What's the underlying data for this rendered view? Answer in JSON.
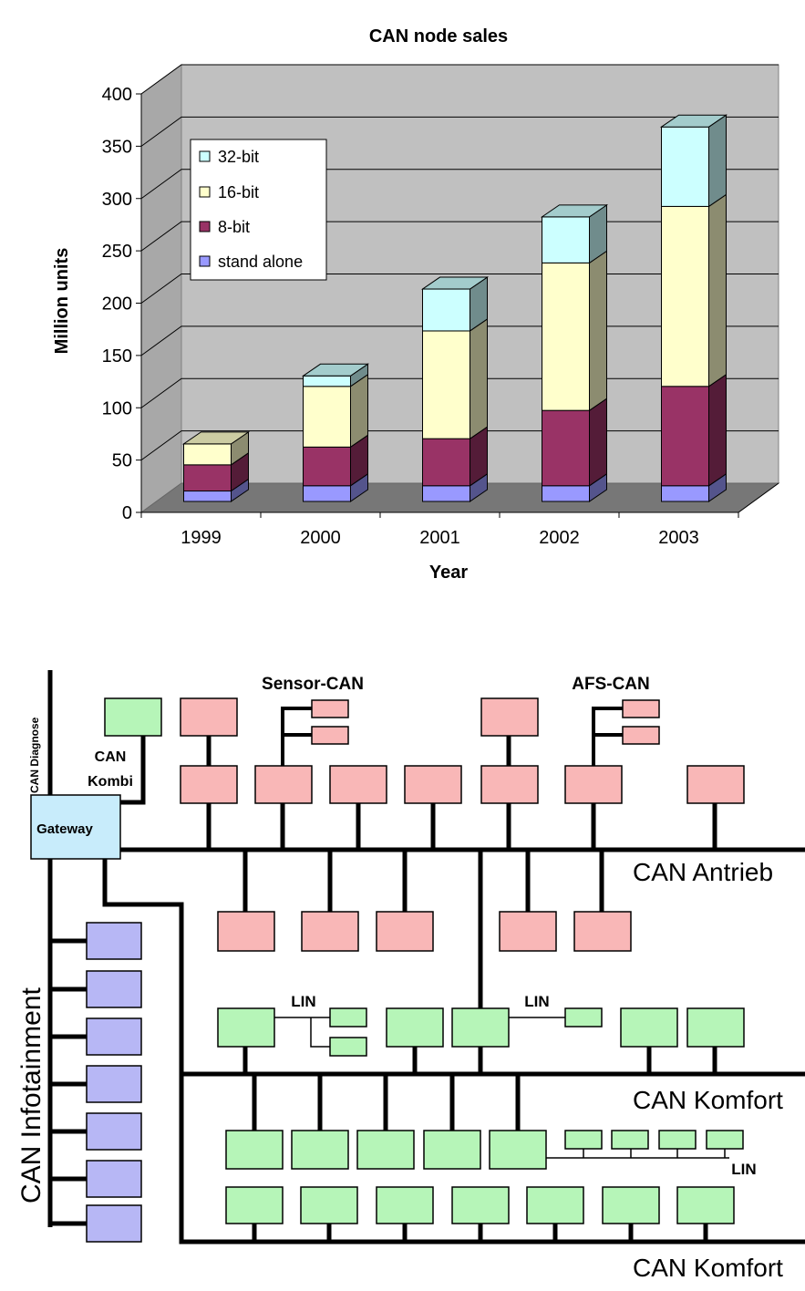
{
  "chart_data": {
    "type": "bar",
    "stacked": true,
    "three_d": true,
    "title": "CAN node sales",
    "xlabel": "Year",
    "ylabel": "Million units",
    "ylim": [
      0,
      400
    ],
    "yticks": [
      0,
      50,
      100,
      150,
      200,
      250,
      300,
      350,
      400
    ],
    "grid": true,
    "legend_position": "top-left",
    "categories": [
      "1999",
      "2000",
      "2001",
      "2002",
      "2003"
    ],
    "series": [
      {
        "name": "stand alone",
        "color": "#9999ff",
        "values": [
          10,
          15,
          15,
          15,
          15
        ]
      },
      {
        "name": "8-bit",
        "color": "#993366",
        "values": [
          25,
          37,
          45,
          72,
          95
        ]
      },
      {
        "name": "16-bit",
        "color": "#ffffcc",
        "values": [
          20,
          58,
          103,
          141,
          172
        ]
      },
      {
        "name": "32-bit",
        "color": "#ccffff",
        "values": [
          0,
          10,
          40,
          44,
          76
        ]
      }
    ],
    "legend_order": [
      "32-bit",
      "16-bit",
      "8-bit",
      "stand alone"
    ]
  },
  "diagram": {
    "labels": {
      "sensor_can": "Sensor-CAN",
      "afs_can": "AFS-CAN",
      "can_diagnose": "CAN Diagnose",
      "can_kombi_1": "CAN",
      "can_kombi_2": "Kombi",
      "gateway": "Gateway",
      "can_antrieb": "CAN Antrieb",
      "can_infotainment": "CAN Infotainment",
      "lin_1": "LIN",
      "lin_2": "LIN",
      "lin_3": "LIN",
      "can_komfort_1": "CAN Komfort",
      "can_komfort_2": "CAN Komfort"
    },
    "colors": {
      "pink_node": "#f9b7b7",
      "green_node": "#b6f5b8",
      "blue_node": "#b7b7f5",
      "gateway": "#c8ecfb",
      "bus_line": "#000000"
    }
  }
}
